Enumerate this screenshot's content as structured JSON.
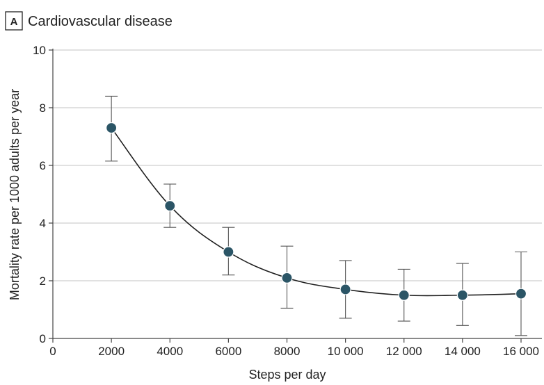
{
  "chart_data": {
    "type": "line",
    "panel_label": "A",
    "title": "Cardiovascular disease",
    "xlabel": "Steps per day",
    "ylabel": "Mortality rate per 1000 adults per year",
    "xlim": [
      0,
      16000
    ],
    "ylim": [
      0,
      10
    ],
    "x_ticks": [
      0,
      2000,
      4000,
      6000,
      8000,
      10000,
      12000,
      14000,
      16000
    ],
    "x_tick_labels": [
      "0",
      "2000",
      "4000",
      "6000",
      "8000",
      "10 000",
      "12 000",
      "14 000",
      "16 000"
    ],
    "y_ticks": [
      0,
      2,
      4,
      6,
      8,
      10
    ],
    "y_tick_labels": [
      "0",
      "2",
      "4",
      "6",
      "8",
      "10"
    ],
    "grid": true,
    "series": [
      {
        "x": [
          2000,
          4000,
          6000,
          8000,
          10000,
          12000,
          14000,
          16000
        ],
        "y": [
          7.3,
          4.6,
          3.0,
          2.1,
          1.7,
          1.5,
          1.5,
          1.55
        ],
        "lower": [
          6.15,
          3.85,
          2.2,
          1.05,
          0.7,
          0.6,
          0.45,
          0.1
        ],
        "upper": [
          8.4,
          5.35,
          3.85,
          3.2,
          2.7,
          2.4,
          2.6,
          3.0
        ],
        "color": "#2b5566"
      }
    ]
  }
}
